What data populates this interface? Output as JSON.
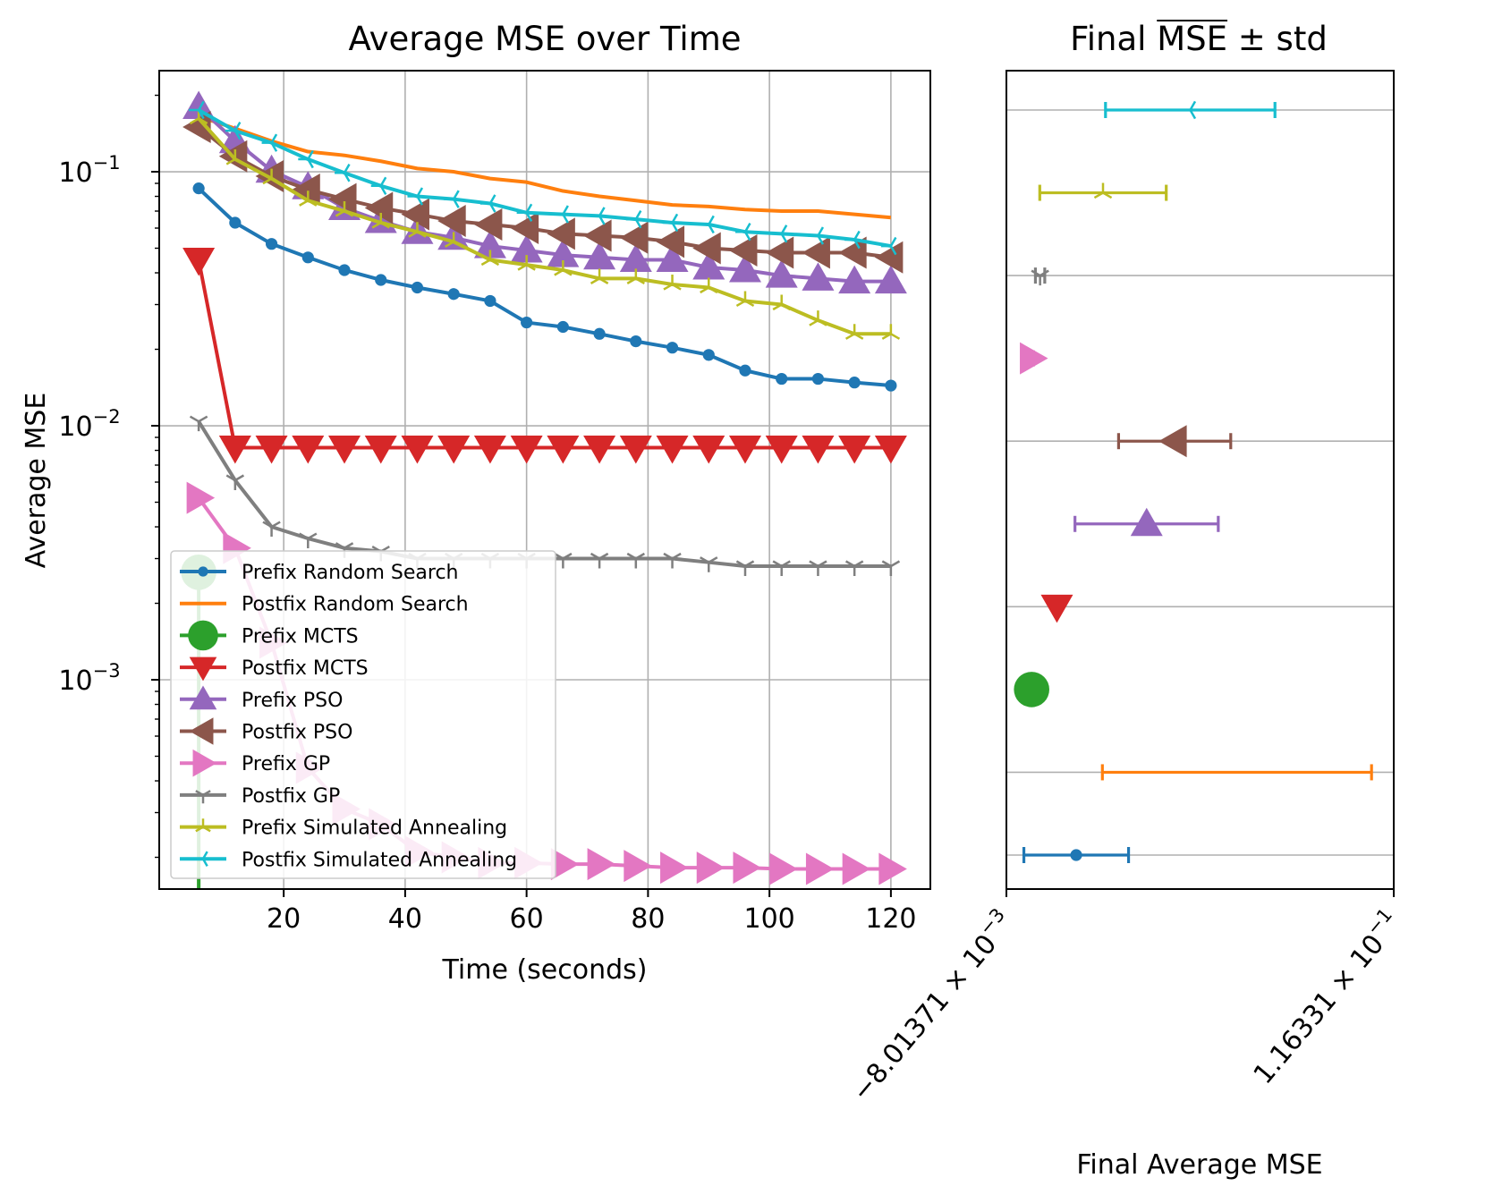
{
  "chart_data": [
    {
      "type": "line",
      "title": "Average MSE over Time",
      "xlabel": "Time (seconds)",
      "ylabel": "Average MSE",
      "yscale": "log",
      "xlim": [
        -0.5,
        126.5
      ],
      "ylim": [
        0.00015,
        0.25
      ],
      "xticks": [
        20,
        40,
        60,
        80,
        100,
        120
      ],
      "yticks": [
        {
          "value": 0.1,
          "mant": "10",
          "exp": "−1"
        },
        {
          "value": 0.01,
          "mant": "10",
          "exp": "−2"
        },
        {
          "value": 0.001,
          "mant": "10",
          "exp": "−3"
        }
      ],
      "grid": true,
      "legend_position": "lower-left",
      "x": [
        6,
        12,
        18,
        24,
        30,
        36,
        42,
        48,
        54,
        60,
        66,
        72,
        78,
        84,
        90,
        96,
        102,
        108,
        114,
        120
      ],
      "series": [
        {
          "name": "Prefix Random Search",
          "color": "#1f77b4",
          "marker": "point",
          "values": [
            0.086,
            0.063,
            0.052,
            0.046,
            0.041,
            0.0375,
            0.035,
            0.033,
            0.031,
            0.0255,
            0.0245,
            0.023,
            0.0215,
            0.0203,
            0.019,
            0.0165,
            0.0153,
            0.0153,
            0.0148,
            0.0144
          ]
        },
        {
          "name": "Postfix Random Search",
          "color": "#ff7f0e",
          "marker": "none",
          "values": [
            0.165,
            0.148,
            0.132,
            0.12,
            0.116,
            0.11,
            0.103,
            0.1,
            0.094,
            0.091,
            0.084,
            0.08,
            0.077,
            0.074,
            0.073,
            0.071,
            0.07,
            0.07,
            0.068,
            0.066
          ]
        },
        {
          "name": "Prefix MCTS",
          "color": "#2ca02c",
          "marker": "circle",
          "values": [
            0.00265,
            null,
            null,
            null,
            null,
            null,
            null,
            null,
            null,
            null,
            null,
            null,
            null,
            null,
            null,
            null,
            null,
            null,
            null,
            null
          ]
        },
        {
          "name": "Postfix MCTS",
          "color": "#d62728",
          "marker": "triangle-down",
          "values": [
            0.045,
            0.0082,
            0.0082,
            0.0082,
            0.0082,
            0.0082,
            0.0082,
            0.0082,
            0.0082,
            0.0082,
            0.0082,
            0.0082,
            0.0082,
            0.0082,
            0.0082,
            0.0082,
            0.0082,
            0.0082,
            0.0082,
            0.0082
          ]
        },
        {
          "name": "Prefix PSO",
          "color": "#9467bd",
          "marker": "triangle-up",
          "values": [
            0.18,
            0.132,
            0.101,
            0.087,
            0.072,
            0.064,
            0.058,
            0.055,
            0.051,
            0.049,
            0.047,
            0.046,
            0.045,
            0.045,
            0.042,
            0.041,
            0.039,
            0.038,
            0.037,
            0.037
          ]
        },
        {
          "name": "Postfix PSO",
          "color": "#8c564b",
          "marker": "triangle-left",
          "values": [
            0.15,
            0.115,
            0.096,
            0.085,
            0.078,
            0.072,
            0.068,
            0.064,
            0.062,
            0.06,
            0.057,
            0.056,
            0.055,
            0.053,
            0.05,
            0.049,
            0.048,
            0.048,
            0.048,
            0.046
          ]
        },
        {
          "name": "Prefix GP",
          "color": "#e377c2",
          "marker": "triangle-right",
          "values": [
            0.0052,
            0.0033,
            0.0014,
            0.00045,
            0.00031,
            0.00027,
            0.00021,
            0.0002,
            0.00019,
            0.00019,
            0.000188,
            0.000188,
            0.000185,
            0.000182,
            0.000182,
            0.000182,
            0.00018,
            0.00018,
            0.00018,
            0.00018
          ]
        },
        {
          "name": "Postfix GP",
          "color": "#7f7f7f",
          "marker": "tri-down",
          "values": [
            0.0104,
            0.0061,
            0.004,
            0.0036,
            0.0033,
            0.0032,
            0.003,
            0.003,
            0.003,
            0.003,
            0.003,
            0.003,
            0.003,
            0.003,
            0.0029,
            0.0028,
            0.0028,
            0.0028,
            0.0028,
            0.0028
          ]
        },
        {
          "name": "Prefix Simulated Annealing",
          "color": "#bcbd22",
          "marker": "tri-up",
          "values": [
            0.162,
            0.112,
            0.094,
            0.077,
            0.07,
            0.063,
            0.058,
            0.053,
            0.045,
            0.043,
            0.041,
            0.038,
            0.038,
            0.036,
            0.035,
            0.031,
            0.03,
            0.026,
            0.023,
            0.023
          ]
        },
        {
          "name": "Postfix Simulated Annealing",
          "color": "#17becf",
          "marker": "tri-left",
          "values": [
            0.175,
            0.145,
            0.13,
            0.112,
            0.099,
            0.088,
            0.08,
            0.078,
            0.075,
            0.069,
            0.068,
            0.067,
            0.065,
            0.063,
            0.062,
            0.058,
            0.057,
            0.056,
            0.054,
            0.051
          ]
        }
      ]
    },
    {
      "type": "errorbar",
      "title_pre": "Final ",
      "title_bar": "MSE",
      "title_post": " ± std",
      "xlabel": "Final Average MSE",
      "xlim": [
        -0.0080137,
        0.116331
      ],
      "xtick_labels": [
        {
          "value": -0.0080137,
          "mant": "−8.01371 × 10",
          "exp": "−3"
        },
        {
          "value": 0.116331,
          "mant": "1.16331 × 10",
          "exp": "−1"
        }
      ],
      "gridlines_at_rows": [
        1,
        3,
        5,
        7,
        9
      ],
      "rows": [
        {
          "name": "Prefix Random Search",
          "color": "#1f77b4",
          "marker": "point",
          "mean": 0.0144,
          "std": 0.0168
        },
        {
          "name": "Postfix Random Search",
          "color": "#ff7f0e",
          "marker": "none",
          "mean": 0.066,
          "std": 0.0432
        },
        {
          "name": "Prefix MCTS",
          "color": "#2ca02c",
          "marker": "circle",
          "mean": 8e-05,
          "std": 0
        },
        {
          "name": "Postfix MCTS",
          "color": "#d62728",
          "marker": "triangle-down",
          "mean": 0.0082,
          "std": 0
        },
        {
          "name": "Prefix PSO",
          "color": "#9467bd",
          "marker": "triangle-up",
          "mean": 0.037,
          "std": 0.023
        },
        {
          "name": "Postfix PSO",
          "color": "#8c564b",
          "marker": "triangle-left",
          "mean": 0.046,
          "std": 0.018
        },
        {
          "name": "Prefix GP",
          "color": "#e377c2",
          "marker": "triangle-right",
          "mean": 0.00018,
          "std": 0.0005
        },
        {
          "name": "Postfix GP",
          "color": "#7f7f7f",
          "marker": "tri-down",
          "mean": 0.0028,
          "std": 0.0015
        },
        {
          "name": "Prefix Simulated Annealing",
          "color": "#bcbd22",
          "marker": "tri-up",
          "mean": 0.023,
          "std": 0.0203
        },
        {
          "name": "Postfix Simulated Annealing",
          "color": "#17becf",
          "marker": "tri-left",
          "mean": 0.051,
          "std": 0.0272
        }
      ]
    }
  ]
}
